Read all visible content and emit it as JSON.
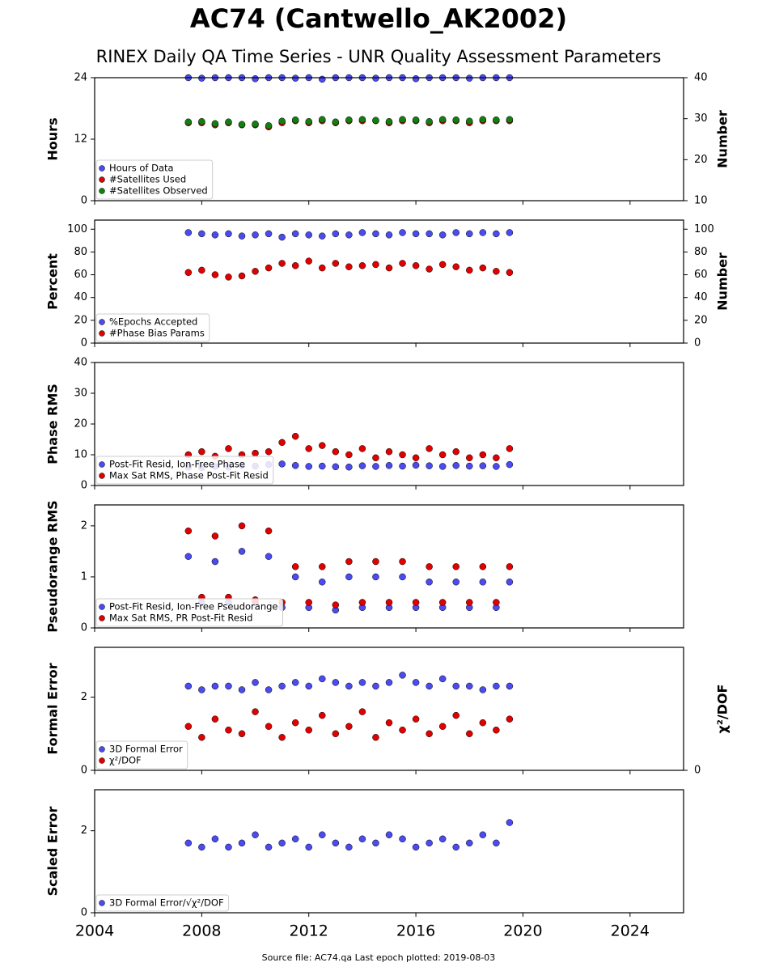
{
  "title": "AC74 (Cantwello_AK2002)",
  "subtitle": "RINEX Daily QA Time Series - UNR Quality Assessment Parameters",
  "footer": "Source file: AC74.qa Last epoch plotted: 2019-08-03",
  "chart_data": [
    {
      "type": "scatter",
      "ylabel": "Hours",
      "y2label": "Number",
      "x": [
        2007.5,
        2008,
        2008.5,
        2009,
        2009.5,
        2010,
        2010.5,
        2011,
        2011.5,
        2012,
        2012.5,
        2013,
        2013.5,
        2014,
        2014.5,
        2015,
        2015.5,
        2016,
        2016.5,
        2017,
        2017.5,
        2018,
        2018.5,
        2019,
        2019.5
      ],
      "xlim": [
        2004,
        2026
      ],
      "xticks": [
        2004,
        2008,
        2012,
        2016,
        2020,
        2024
      ],
      "ylim": [
        0,
        24
      ],
      "yticks": [
        0,
        12,
        24
      ],
      "y2lim": [
        10,
        40
      ],
      "y2ticks": [
        10,
        20,
        30,
        40
      ],
      "series": [
        {
          "name": "Hours of Data",
          "color": "#4b4bf0",
          "values": [
            24,
            23.9,
            24,
            24,
            24,
            23.8,
            24,
            24,
            23.9,
            24,
            23.7,
            24,
            24,
            24,
            23.9,
            24,
            24,
            23.8,
            24,
            24,
            24,
            23.9,
            24,
            24,
            24
          ]
        },
        {
          "name": "#Satellites Used",
          "color": "#e00000",
          "axis": "y2",
          "values": [
            29,
            29,
            28.5,
            29,
            28.5,
            28.5,
            28,
            29,
            29.5,
            29,
            29.5,
            29,
            29.5,
            29.5,
            29.5,
            29,
            29.5,
            29.5,
            29,
            29.5,
            29.5,
            29,
            29.5,
            29.5,
            29.5
          ]
        },
        {
          "name": "#Satellites Observed",
          "color": "#118011",
          "axis": "y2",
          "values": [
            29.2,
            29.3,
            28.8,
            29.2,
            28.6,
            28.7,
            28.3,
            29.4,
            29.7,
            29.3,
            29.8,
            29.2,
            29.7,
            29.8,
            29.6,
            29.3,
            29.8,
            29.7,
            29.3,
            29.8,
            29.7,
            29.4,
            29.8,
            29.7,
            29.8
          ]
        }
      ]
    },
    {
      "type": "scatter",
      "ylabel": "Percent",
      "y2label": "Number",
      "x": [
        2007.5,
        2008,
        2008.5,
        2009,
        2009.5,
        2010,
        2010.5,
        2011,
        2011.5,
        2012,
        2012.5,
        2013,
        2013.5,
        2014,
        2014.5,
        2015,
        2015.5,
        2016,
        2016.5,
        2017,
        2017.5,
        2018,
        2018.5,
        2019,
        2019.5
      ],
      "xlim": [
        2004,
        2026
      ],
      "xticks": [
        2004,
        2008,
        2012,
        2016,
        2020,
        2024
      ],
      "ylim": [
        0,
        108
      ],
      "yticks": [
        0,
        20,
        40,
        60,
        80,
        100
      ],
      "y2lim": [
        0,
        108
      ],
      "y2ticks": [
        0,
        20,
        40,
        60,
        80,
        100
      ],
      "series": [
        {
          "name": "%Epochs Accepted",
          "color": "#4b4bf0",
          "values": [
            97,
            96,
            95,
            96,
            94,
            95,
            96,
            93,
            96,
            95,
            94,
            96,
            95,
            97,
            96,
            95,
            97,
            96,
            96,
            95,
            97,
            96,
            97,
            96,
            97
          ]
        },
        {
          "name": "#Phase Bias Params",
          "color": "#e00000",
          "axis": "y2",
          "values": [
            62,
            64,
            60,
            58,
            59,
            63,
            66,
            70,
            68,
            72,
            66,
            70,
            67,
            68,
            69,
            66,
            70,
            68,
            65,
            69,
            67,
            64,
            66,
            63,
            62
          ]
        }
      ]
    },
    {
      "type": "scatter",
      "ylabel": "Phase RMS",
      "x": [
        2007.5,
        2008,
        2008.5,
        2009,
        2009.5,
        2010,
        2010.5,
        2011,
        2011.5,
        2012,
        2012.5,
        2013,
        2013.5,
        2014,
        2014.5,
        2015,
        2015.5,
        2016,
        2016.5,
        2017,
        2017.5,
        2018,
        2018.5,
        2019,
        2019.5
      ],
      "xlim": [
        2004,
        2026
      ],
      "xticks": [
        2004,
        2008,
        2012,
        2016,
        2020,
        2024
      ],
      "ylim": [
        0,
        40
      ],
      "yticks": [
        0,
        10,
        20,
        30,
        40
      ],
      "series": [
        {
          "name": "Post-Fit Resid, Ion-Free Phase",
          "color": "#4b4bf0",
          "values": [
            6,
            5.8,
            6.2,
            6,
            6.5,
            6.3,
            6.8,
            7,
            6.5,
            6.2,
            6.3,
            6.1,
            6,
            6.4,
            6.2,
            6.5,
            6.3,
            6.6,
            6.4,
            6.2,
            6.5,
            6.3,
            6.4,
            6.2,
            6.8
          ]
        },
        {
          "name": "Max Sat RMS, Phase Post-Fit Resid",
          "color": "#e00000",
          "values": [
            10,
            11,
            9.5,
            12,
            10,
            10.5,
            11,
            14,
            16,
            12,
            13,
            11,
            10,
            12,
            9,
            11,
            10,
            9,
            12,
            10,
            11,
            9,
            10,
            9,
            12
          ]
        }
      ]
    },
    {
      "type": "scatter",
      "ylabel": "Pseudorange RMS",
      "x": [
        2007.5,
        2008,
        2008.5,
        2009,
        2009.5,
        2010,
        2010.5,
        2011,
        2011.5,
        2012,
        2012.5,
        2013,
        2013.5,
        2014,
        2014.5,
        2015,
        2015.5,
        2016,
        2016.5,
        2017,
        2017.5,
        2018,
        2018.5,
        2019,
        2019.5
      ],
      "xlim": [
        2004,
        2026
      ],
      "xticks": [
        2004,
        2008,
        2012,
        2016,
        2020,
        2024
      ],
      "ylim": [
        0,
        2.41
      ],
      "yticks": [
        0,
        1,
        2
      ],
      "series": [
        {
          "name": "Post-Fit Resid, Ion-Free Pseudorange",
          "color": "#4b4bf0",
          "values": [
            1.4,
            0.5,
            1.3,
            0.5,
            1.5,
            0.5,
            1.4,
            0.4,
            1.0,
            0.4,
            0.9,
            0.35,
            1.0,
            0.4,
            1.0,
            0.4,
            1.0,
            0.4,
            0.9,
            0.4,
            0.9,
            0.4,
            0.9,
            0.4,
            0.9
          ]
        },
        {
          "name": "Max Sat RMS, PR Post-Fit Resid",
          "color": "#e00000",
          "values": [
            1.9,
            0.6,
            1.8,
            0.6,
            2.0,
            0.55,
            1.9,
            0.5,
            1.2,
            0.5,
            1.2,
            0.45,
            1.3,
            0.5,
            1.3,
            0.5,
            1.3,
            0.5,
            1.2,
            0.5,
            1.2,
            0.5,
            1.2,
            0.5,
            1.2
          ]
        }
      ]
    },
    {
      "type": "scatter",
      "ylabel": "Formal Error",
      "y2label": "χ²/DOF",
      "x": [
        2007.5,
        2008,
        2008.5,
        2009,
        2009.5,
        2010,
        2010.5,
        2011,
        2011.5,
        2012,
        2012.5,
        2013,
        2013.5,
        2014,
        2014.5,
        2015,
        2015.5,
        2016,
        2016.5,
        2017,
        2017.5,
        2018,
        2018.5,
        2019,
        2019.5
      ],
      "xlim": [
        2004,
        2026
      ],
      "xticks": [
        2004,
        2008,
        2012,
        2016,
        2020,
        2024
      ],
      "ylim": [
        0,
        3.36
      ],
      "yticks": [
        0,
        2
      ],
      "y2lim": [
        0,
        3.36
      ],
      "y2ticks": [
        0
      ],
      "series": [
        {
          "name": "3D Formal Error",
          "color": "#4b4bf0",
          "values": [
            2.3,
            2.2,
            2.3,
            2.3,
            2.2,
            2.4,
            2.2,
            2.3,
            2.4,
            2.3,
            2.5,
            2.4,
            2.3,
            2.4,
            2.3,
            2.4,
            2.6,
            2.4,
            2.3,
            2.5,
            2.3,
            2.3,
            2.2,
            2.3,
            2.3
          ]
        },
        {
          "name": "χ²/DOF",
          "color": "#e00000",
          "axis": "y2",
          "values": [
            1.2,
            0.9,
            1.4,
            1.1,
            1.0,
            1.6,
            1.2,
            0.9,
            1.3,
            1.1,
            1.5,
            1.0,
            1.2,
            1.6,
            0.9,
            1.3,
            1.1,
            1.4,
            1.0,
            1.2,
            1.5,
            1.0,
            1.3,
            1.1,
            1.4
          ]
        }
      ]
    },
    {
      "type": "scatter",
      "ylabel": "Scaled Error",
      "x": [
        2007.5,
        2008,
        2008.5,
        2009,
        2009.5,
        2010,
        2010.5,
        2011,
        2011.5,
        2012,
        2012.5,
        2013,
        2013.5,
        2014,
        2014.5,
        2015,
        2015.5,
        2016,
        2016.5,
        2017,
        2017.5,
        2018,
        2018.5,
        2019,
        2019.5
      ],
      "xlim": [
        2004,
        2026
      ],
      "xticks": [
        2004,
        2008,
        2012,
        2016,
        2020,
        2024
      ],
      "ylim": [
        0,
        3
      ],
      "yticks": [
        0,
        2
      ],
      "series": [
        {
          "name": "3D Formal Error/√χ²/DOF",
          "color": "#4b4bf0",
          "values": [
            1.7,
            1.6,
            1.8,
            1.6,
            1.7,
            1.9,
            1.6,
            1.7,
            1.8,
            1.6,
            1.9,
            1.7,
            1.6,
            1.8,
            1.7,
            1.9,
            1.8,
            1.6,
            1.7,
            1.8,
            1.6,
            1.7,
            1.9,
            1.7,
            2.2
          ]
        }
      ]
    }
  ]
}
